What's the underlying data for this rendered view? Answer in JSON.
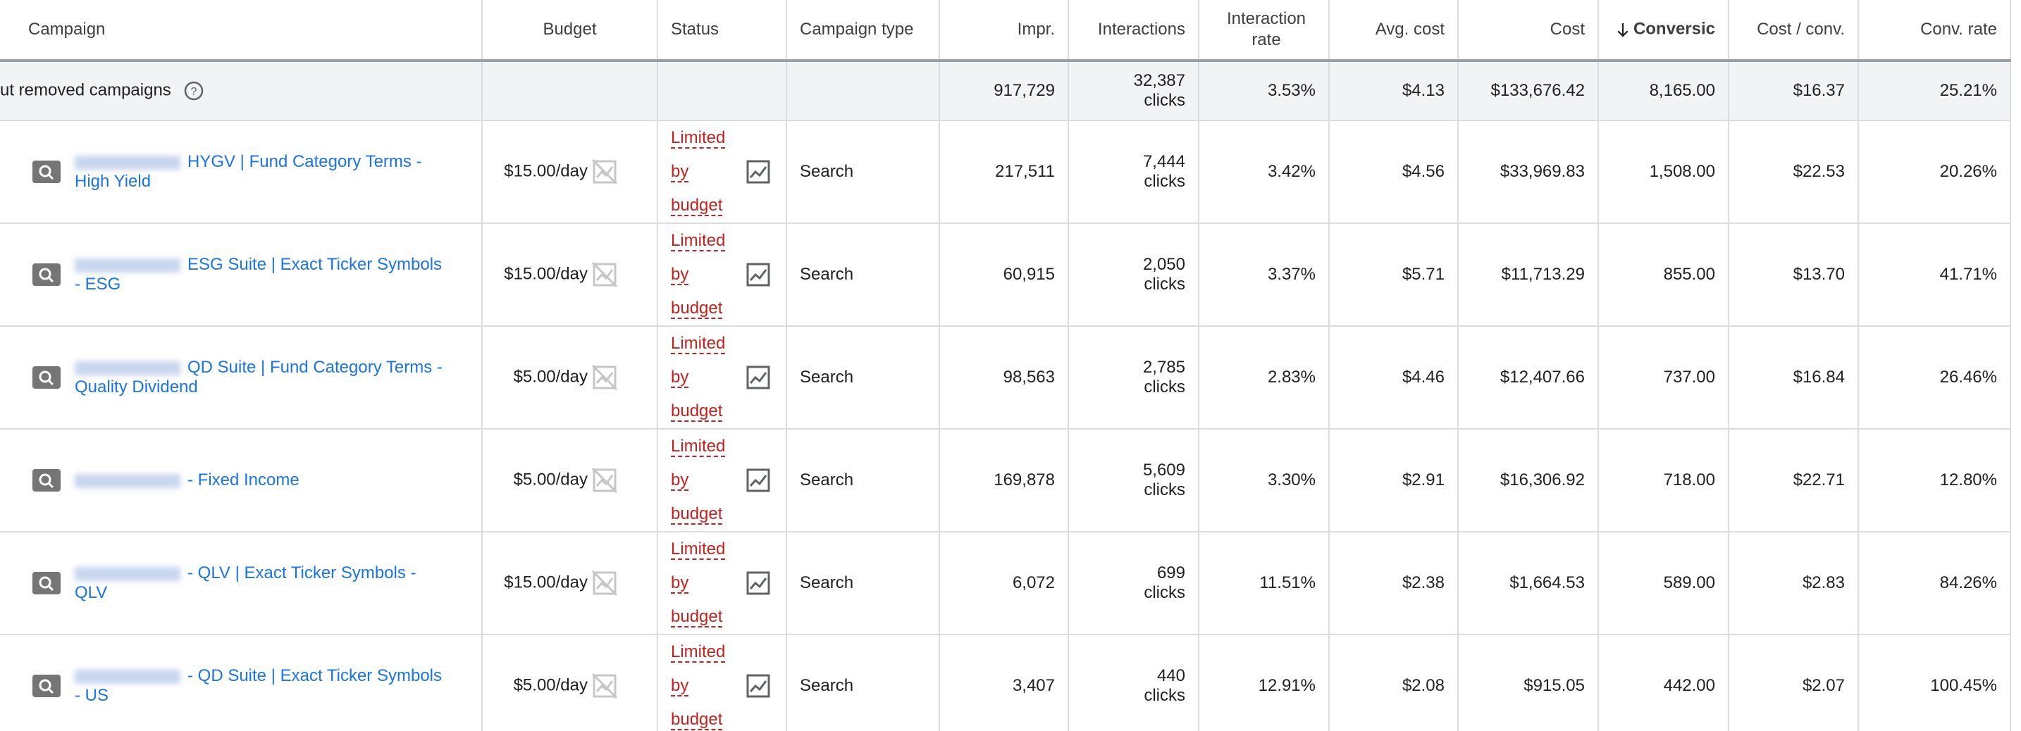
{
  "header": {
    "columns": [
      "Campaign",
      "Budget",
      "Status",
      "Campaign type",
      "Impr.",
      "Interactions",
      "Interaction rate",
      "Avg. cost",
      "Cost",
      "Conversic",
      "Cost / conv.",
      "Conv. rate"
    ]
  },
  "total": {
    "label": "ut removed campaigns",
    "impressions": "917,729",
    "interactions": {
      "value": "32,387",
      "unit": "clicks"
    },
    "interaction_rate": "3.53%",
    "avg_cost": "$4.13",
    "cost": "$133,676.42",
    "conversions": "8,165.00",
    "cost_per_conv": "$16.37",
    "conv_rate": "25.21%"
  },
  "rows": [
    {
      "campaign": "HYGV | Fund Category Terms - High Yield",
      "budget": "$15.00/day",
      "status": "Limited by budget",
      "type": "Search",
      "impressions": "217,511",
      "interactions": {
        "value": "7,444",
        "unit": "clicks"
      },
      "interaction_rate": "3.42%",
      "avg_cost": "$4.56",
      "cost": "$33,969.83",
      "conversions": "1,508.00",
      "cost_per_conv": "$22.53",
      "conv_rate": "20.26%"
    },
    {
      "campaign": "ESG Suite | Exact Ticker Symbols - ESG",
      "budget": "$15.00/day",
      "status": "Limited by budget",
      "type": "Search",
      "impressions": "60,915",
      "interactions": {
        "value": "2,050",
        "unit": "clicks"
      },
      "interaction_rate": "3.37%",
      "avg_cost": "$5.71",
      "cost": "$11,713.29",
      "conversions": "855.00",
      "cost_per_conv": "$13.70",
      "conv_rate": "41.71%"
    },
    {
      "campaign": "QD Suite | Fund Category Terms - Quality Dividend",
      "budget": "$5.00/day",
      "status": "Limited by budget",
      "type": "Search",
      "impressions": "98,563",
      "interactions": {
        "value": "2,785",
        "unit": "clicks"
      },
      "interaction_rate": "2.83%",
      "avg_cost": "$4.46",
      "cost": "$12,407.66",
      "conversions": "737.00",
      "cost_per_conv": "$16.84",
      "conv_rate": "26.46%"
    },
    {
      "campaign": "- Fixed Income",
      "budget": "$5.00/day",
      "status": "Limited by budget",
      "type": "Search",
      "impressions": "169,878",
      "interactions": {
        "value": "5,609",
        "unit": "clicks"
      },
      "interaction_rate": "3.30%",
      "avg_cost": "$2.91",
      "cost": "$16,306.92",
      "conversions": "718.00",
      "cost_per_conv": "$22.71",
      "conv_rate": "12.80%"
    },
    {
      "campaign": "- QLV | Exact Ticker Symbols - QLV",
      "budget": "$15.00/day",
      "status": "Limited by budget",
      "type": "Search",
      "impressions": "6,072",
      "interactions": {
        "value": "699",
        "unit": "clicks"
      },
      "interaction_rate": "11.51%",
      "avg_cost": "$2.38",
      "cost": "$1,664.53",
      "conversions": "589.00",
      "cost_per_conv": "$2.83",
      "conv_rate": "84.26%"
    },
    {
      "campaign": "- QD Suite | Exact Ticker Symbols - US",
      "budget": "$5.00/day",
      "status": "Limited by budget",
      "type": "Search",
      "impressions": "3,407",
      "interactions": {
        "value": "440",
        "unit": "clicks"
      },
      "interaction_rate": "12.91%",
      "avg_cost": "$2.08",
      "cost": "$915.05",
      "conversions": "442.00",
      "cost_per_conv": "$2.07",
      "conv_rate": "100.45%"
    }
  ]
}
